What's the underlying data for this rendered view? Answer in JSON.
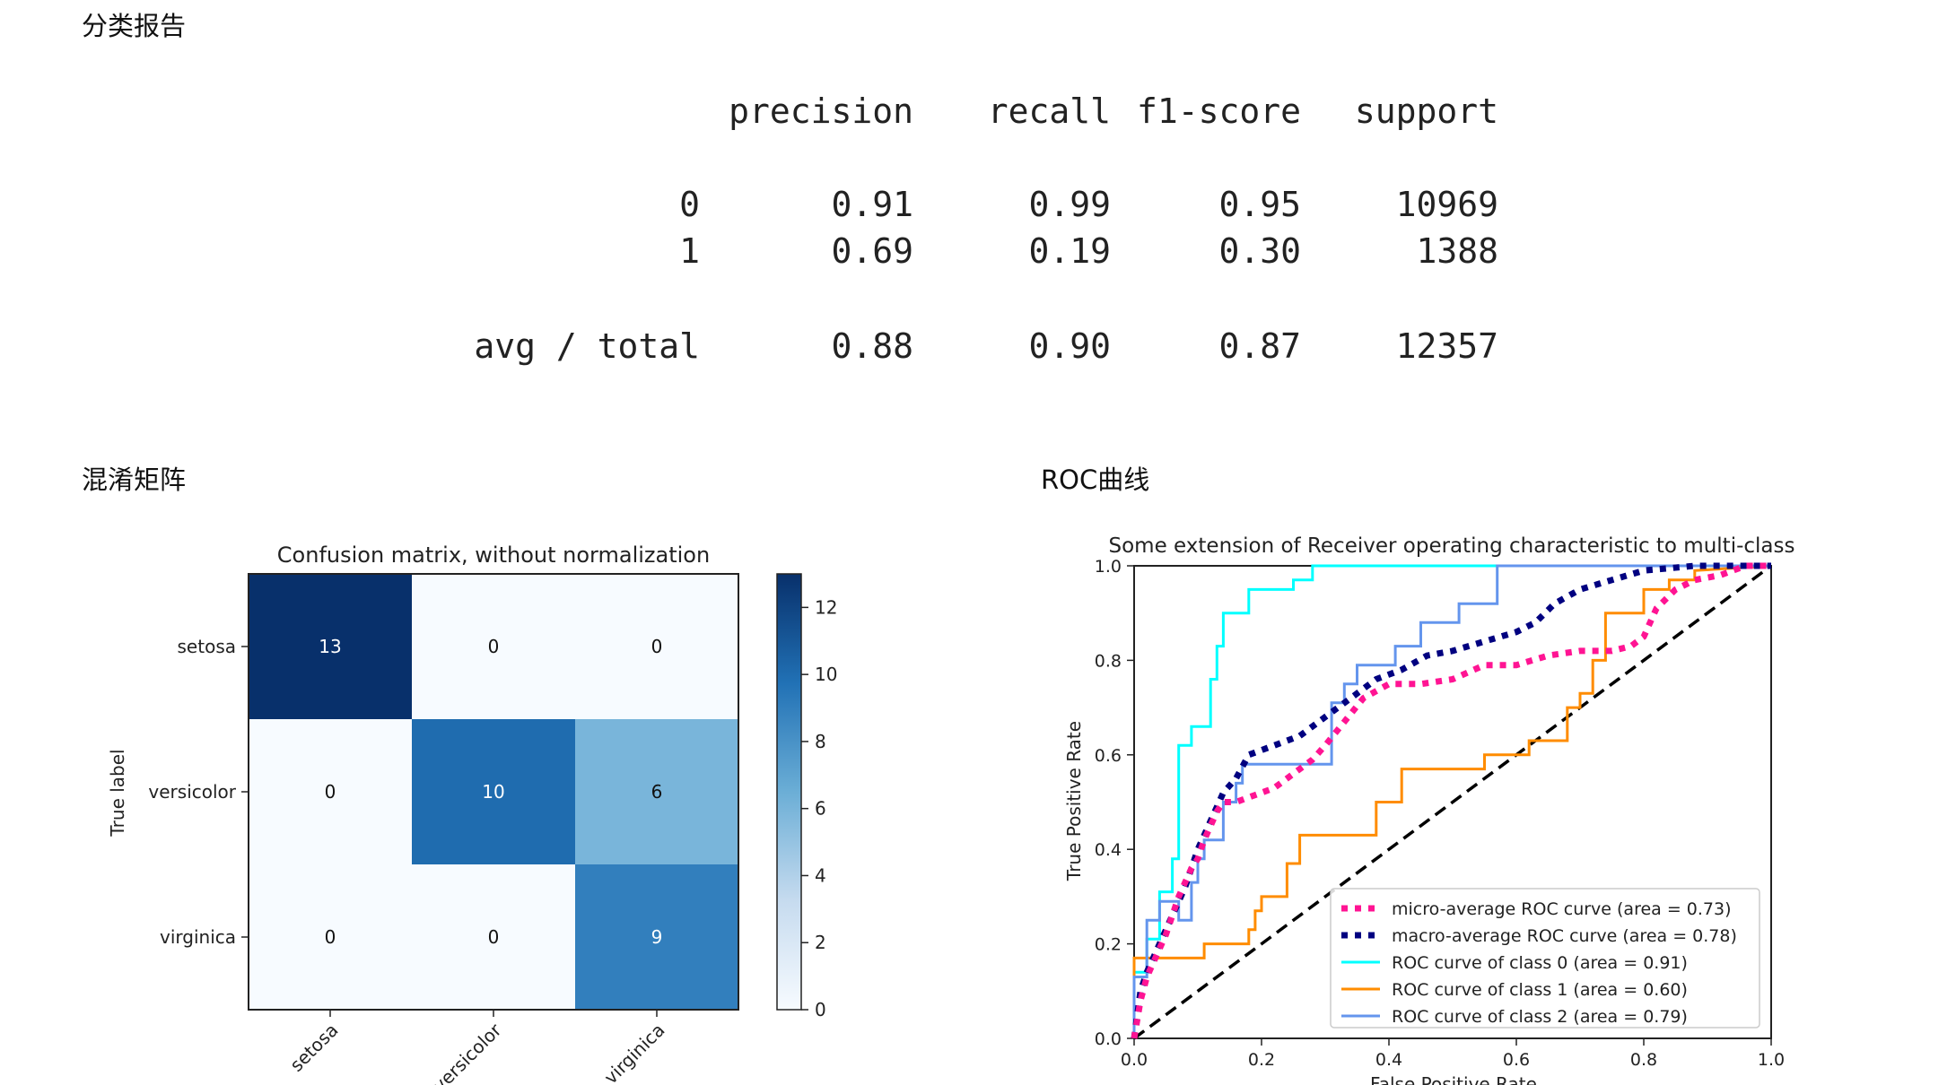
{
  "sections": {
    "report_title": "分类报告",
    "confusion_title": "混淆矩阵",
    "roc_title": "ROC曲线"
  },
  "classification_report": {
    "headers": [
      "precision",
      "recall",
      "f1-score",
      "support"
    ],
    "rows": [
      {
        "label": "0",
        "values": [
          "0.91",
          "0.99",
          "0.95",
          "10969"
        ]
      },
      {
        "label": "1",
        "values": [
          "0.69",
          "0.19",
          "0.30",
          "1388"
        ]
      },
      {
        "label": "avg / total",
        "values": [
          "0.88",
          "0.90",
          "0.87",
          "12357"
        ]
      }
    ]
  },
  "chart_data": [
    {
      "type": "heatmap",
      "title": "Confusion matrix, without normalization",
      "ylabel": "True label",
      "xlabel": "",
      "rows": [
        "setosa",
        "versicolor",
        "virginica"
      ],
      "columns": [
        "setosa",
        "versicolor",
        "virginica"
      ],
      "values": [
        [
          13,
          0,
          0
        ],
        [
          0,
          10,
          6
        ],
        [
          0,
          0,
          9
        ]
      ],
      "colorbar": {
        "min": 0,
        "max": 13,
        "ticks": [
          0,
          2,
          4,
          6,
          8,
          10,
          12
        ]
      },
      "colormap": [
        "#f7fbff",
        "#08306b"
      ]
    },
    {
      "type": "line",
      "title": "Some extension of Receiver operating characteristic to multi-class",
      "xlabel": "False Positive Rate",
      "ylabel": "True Positive Rate",
      "xlim": [
        0.0,
        1.0
      ],
      "ylim": [
        0.0,
        1.0
      ],
      "xticks": [
        "0.0",
        "0.2",
        "0.4",
        "0.6",
        "0.8",
        "1.0"
      ],
      "yticks": [
        "0.0",
        "0.2",
        "0.4",
        "0.6",
        "0.8",
        "1.0"
      ],
      "legend_position": "lower-right",
      "series": [
        {
          "name": "micro-average ROC curve (area = 0.73)",
          "color": "#ff1493",
          "style": "dotted",
          "points": [
            [
              0,
              0
            ],
            [
              0.01,
              0.08
            ],
            [
              0.02,
              0.13
            ],
            [
              0.03,
              0.16
            ],
            [
              0.05,
              0.22
            ],
            [
              0.06,
              0.26
            ],
            [
              0.07,
              0.3
            ],
            [
              0.08,
              0.33
            ],
            [
              0.09,
              0.36
            ],
            [
              0.1,
              0.38
            ],
            [
              0.11,
              0.42
            ],
            [
              0.12,
              0.45
            ],
            [
              0.13,
              0.48
            ],
            [
              0.14,
              0.5
            ],
            [
              0.16,
              0.5
            ],
            [
              0.18,
              0.51
            ],
            [
              0.2,
              0.52
            ],
            [
              0.22,
              0.53
            ],
            [
              0.25,
              0.56
            ],
            [
              0.28,
              0.59
            ],
            [
              0.3,
              0.62
            ],
            [
              0.33,
              0.67
            ],
            [
              0.36,
              0.72
            ],
            [
              0.4,
              0.75
            ],
            [
              0.45,
              0.75
            ],
            [
              0.5,
              0.76
            ],
            [
              0.55,
              0.79
            ],
            [
              0.6,
              0.79
            ],
            [
              0.65,
              0.81
            ],
            [
              0.7,
              0.82
            ],
            [
              0.75,
              0.82
            ],
            [
              0.78,
              0.83
            ],
            [
              0.8,
              0.85
            ],
            [
              0.82,
              0.91
            ],
            [
              0.85,
              0.95
            ],
            [
              0.88,
              0.97
            ],
            [
              0.92,
              0.98
            ],
            [
              0.96,
              1.0
            ],
            [
              1.0,
              1.0
            ]
          ]
        },
        {
          "name": "macro-average ROC curve (area = 0.78)",
          "color": "#000080",
          "style": "dotted",
          "points": [
            [
              0,
              0
            ],
            [
              0.01,
              0.1
            ],
            [
              0.02,
              0.14
            ],
            [
              0.04,
              0.2
            ],
            [
              0.06,
              0.26
            ],
            [
              0.08,
              0.32
            ],
            [
              0.1,
              0.4
            ],
            [
              0.12,
              0.46
            ],
            [
              0.14,
              0.52
            ],
            [
              0.16,
              0.55
            ],
            [
              0.18,
              0.6
            ],
            [
              0.22,
              0.62
            ],
            [
              0.26,
              0.64
            ],
            [
              0.3,
              0.68
            ],
            [
              0.34,
              0.72
            ],
            [
              0.38,
              0.76
            ],
            [
              0.42,
              0.78
            ],
            [
              0.46,
              0.81
            ],
            [
              0.5,
              0.82
            ],
            [
              0.55,
              0.84
            ],
            [
              0.6,
              0.86
            ],
            [
              0.63,
              0.88
            ],
            [
              0.66,
              0.92
            ],
            [
              0.7,
              0.95
            ],
            [
              0.75,
              0.97
            ],
            [
              0.8,
              0.99
            ],
            [
              0.88,
              1.0
            ],
            [
              1.0,
              1.0
            ]
          ]
        },
        {
          "name": "ROC curve of class 0 (area = 0.91)",
          "color": "#00ffff",
          "style": "solid",
          "points": [
            [
              0,
              0
            ],
            [
              0,
              0.14
            ],
            [
              0.02,
              0.14
            ],
            [
              0.02,
              0.21
            ],
            [
              0.04,
              0.21
            ],
            [
              0.04,
              0.31
            ],
            [
              0.06,
              0.31
            ],
            [
              0.06,
              0.38
            ],
            [
              0.07,
              0.38
            ],
            [
              0.07,
              0.62
            ],
            [
              0.09,
              0.62
            ],
            [
              0.09,
              0.66
            ],
            [
              0.12,
              0.66
            ],
            [
              0.12,
              0.76
            ],
            [
              0.13,
              0.76
            ],
            [
              0.13,
              0.83
            ],
            [
              0.14,
              0.83
            ],
            [
              0.14,
              0.9
            ],
            [
              0.18,
              0.9
            ],
            [
              0.18,
              0.95
            ],
            [
              0.25,
              0.95
            ],
            [
              0.25,
              0.97
            ],
            [
              0.28,
              0.97
            ],
            [
              0.28,
              1.0
            ],
            [
              1.0,
              1.0
            ]
          ]
        },
        {
          "name": "ROC curve of class 1 (area = 0.60)",
          "color": "#ff8c00",
          "style": "solid",
          "points": [
            [
              0,
              0
            ],
            [
              0,
              0.17
            ],
            [
              0.02,
              0.17
            ],
            [
              0.02,
              0.17
            ],
            [
              0.11,
              0.17
            ],
            [
              0.11,
              0.2
            ],
            [
              0.18,
              0.2
            ],
            [
              0.18,
              0.23
            ],
            [
              0.19,
              0.23
            ],
            [
              0.19,
              0.27
            ],
            [
              0.2,
              0.27
            ],
            [
              0.2,
              0.3
            ],
            [
              0.24,
              0.3
            ],
            [
              0.24,
              0.37
            ],
            [
              0.26,
              0.37
            ],
            [
              0.26,
              0.43
            ],
            [
              0.38,
              0.43
            ],
            [
              0.38,
              0.5
            ],
            [
              0.42,
              0.5
            ],
            [
              0.42,
              0.57
            ],
            [
              0.55,
              0.57
            ],
            [
              0.55,
              0.6
            ],
            [
              0.62,
              0.6
            ],
            [
              0.62,
              0.63
            ],
            [
              0.68,
              0.63
            ],
            [
              0.68,
              0.7
            ],
            [
              0.7,
              0.7
            ],
            [
              0.7,
              0.73
            ],
            [
              0.72,
              0.73
            ],
            [
              0.72,
              0.8
            ],
            [
              0.74,
              0.8
            ],
            [
              0.74,
              0.9
            ],
            [
              0.8,
              0.9
            ],
            [
              0.8,
              0.95
            ],
            [
              0.84,
              0.95
            ],
            [
              0.84,
              0.97
            ],
            [
              0.88,
              0.97
            ],
            [
              0.88,
              0.99
            ],
            [
              1.0,
              1.0
            ]
          ]
        },
        {
          "name": "ROC curve of class 2 (area = 0.79)",
          "color": "#6495ed",
          "style": "solid",
          "points": [
            [
              0,
              0
            ],
            [
              0,
              0.13
            ],
            [
              0.02,
              0.13
            ],
            [
              0.02,
              0.25
            ],
            [
              0.04,
              0.25
            ],
            [
              0.04,
              0.29
            ],
            [
              0.07,
              0.29
            ],
            [
              0.07,
              0.25
            ],
            [
              0.09,
              0.25
            ],
            [
              0.09,
              0.33
            ],
            [
              0.1,
              0.33
            ],
            [
              0.1,
              0.38
            ],
            [
              0.11,
              0.38
            ],
            [
              0.11,
              0.42
            ],
            [
              0.14,
              0.42
            ],
            [
              0.14,
              0.5
            ],
            [
              0.16,
              0.5
            ],
            [
              0.16,
              0.54
            ],
            [
              0.17,
              0.54
            ],
            [
              0.17,
              0.58
            ],
            [
              0.31,
              0.58
            ],
            [
              0.31,
              0.71
            ],
            [
              0.33,
              0.71
            ],
            [
              0.33,
              0.75
            ],
            [
              0.35,
              0.75
            ],
            [
              0.35,
              0.79
            ],
            [
              0.41,
              0.79
            ],
            [
              0.41,
              0.83
            ],
            [
              0.45,
              0.83
            ],
            [
              0.45,
              0.88
            ],
            [
              0.51,
              0.88
            ],
            [
              0.51,
              0.92
            ],
            [
              0.57,
              0.92
            ],
            [
              0.57,
              0.96
            ],
            [
              0.57,
              1.0
            ],
            [
              1.0,
              1.0
            ]
          ]
        },
        {
          "name": "",
          "color": "#000000",
          "style": "dashed",
          "points": [
            [
              0,
              0
            ],
            [
              1,
              1
            ]
          ]
        }
      ]
    }
  ]
}
